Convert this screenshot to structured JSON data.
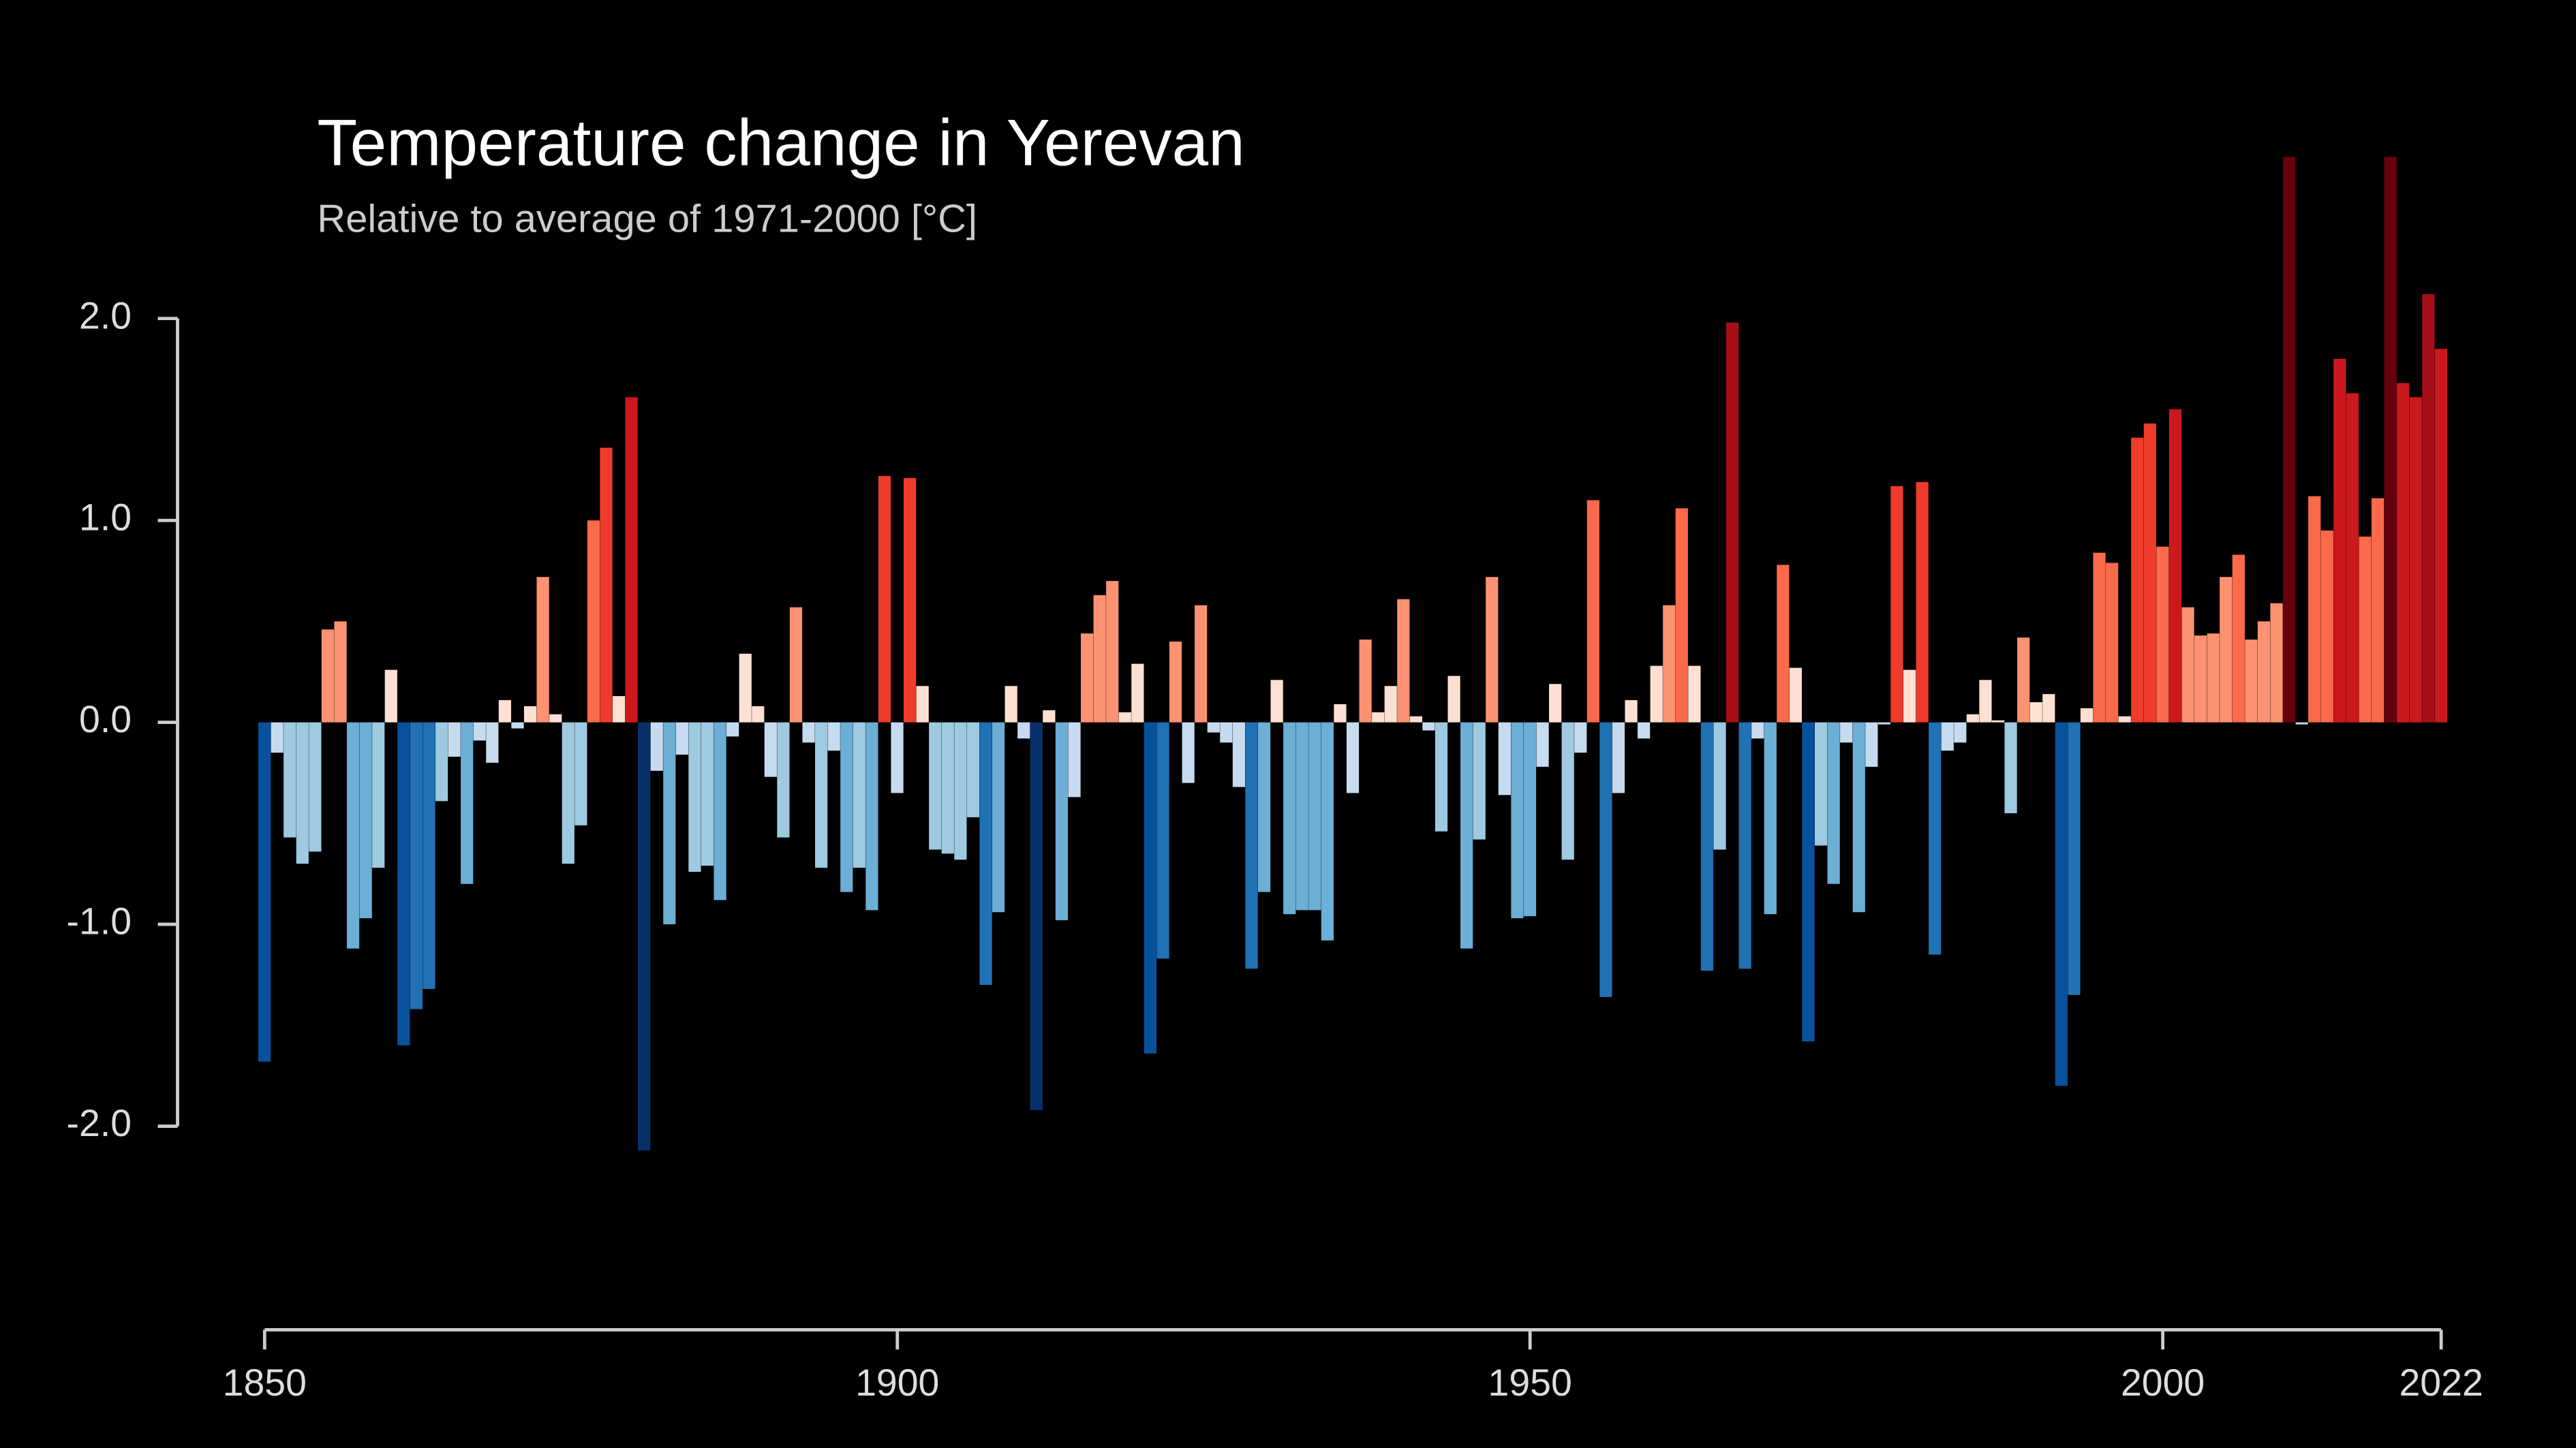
{
  "chart_data": {
    "type": "bar",
    "title": "Temperature change in Yerevan",
    "subtitle": "Relative to average of 1971-2000  [°C]",
    "x": [
      1850,
      1851,
      1852,
      1853,
      1854,
      1855,
      1856,
      1857,
      1858,
      1859,
      1860,
      1861,
      1862,
      1863,
      1864,
      1865,
      1866,
      1867,
      1868,
      1869,
      1870,
      1871,
      1872,
      1873,
      1874,
      1875,
      1876,
      1877,
      1878,
      1879,
      1880,
      1881,
      1882,
      1883,
      1884,
      1885,
      1886,
      1887,
      1888,
      1889,
      1890,
      1891,
      1892,
      1893,
      1894,
      1895,
      1896,
      1897,
      1898,
      1899,
      1900,
      1901,
      1902,
      1903,
      1904,
      1905,
      1906,
      1907,
      1908,
      1909,
      1910,
      1911,
      1912,
      1913,
      1914,
      1915,
      1916,
      1917,
      1918,
      1919,
      1920,
      1921,
      1922,
      1923,
      1924,
      1925,
      1926,
      1927,
      1928,
      1929,
      1930,
      1931,
      1932,
      1933,
      1934,
      1935,
      1936,
      1937,
      1938,
      1939,
      1940,
      1941,
      1942,
      1943,
      1944,
      1945,
      1946,
      1947,
      1948,
      1949,
      1950,
      1951,
      1952,
      1953,
      1954,
      1955,
      1956,
      1957,
      1958,
      1959,
      1960,
      1961,
      1962,
      1963,
      1964,
      1965,
      1966,
      1967,
      1968,
      1969,
      1970,
      1971,
      1972,
      1973,
      1974,
      1975,
      1976,
      1977,
      1978,
      1979,
      1980,
      1981,
      1982,
      1983,
      1984,
      1985,
      1986,
      1987,
      1988,
      1989,
      1990,
      1991,
      1992,
      1993,
      1994,
      1995,
      1996,
      1997,
      1998,
      1999,
      2000,
      2001,
      2002,
      2003,
      2004,
      2005,
      2006,
      2007,
      2008,
      2009,
      2010,
      2011,
      2012,
      2013,
      2014,
      2015,
      2016,
      2017,
      2018,
      2019,
      2020,
      2021,
      2022
    ],
    "values": [
      -1.68,
      -0.15,
      -0.57,
      -0.7,
      -0.64,
      0.46,
      0.5,
      -1.12,
      -0.97,
      -0.72,
      0.26,
      -1.6,
      -1.42,
      -1.32,
      -0.39,
      -0.17,
      -0.8,
      -0.09,
      -0.2,
      0.11,
      -0.03,
      0.08,
      0.72,
      0.04,
      -0.7,
      -0.51,
      1.0,
      1.36,
      0.13,
      1.61,
      -2.12,
      -0.24,
      -1.0,
      -0.16,
      -0.74,
      -0.71,
      -0.88,
      -0.07,
      0.34,
      0.08,
      -0.27,
      -0.57,
      0.57,
      -0.1,
      -0.72,
      -0.14,
      -0.84,
      -0.72,
      -0.93,
      1.22,
      -0.35,
      1.21,
      0.18,
      -0.63,
      -0.65,
      -0.68,
      -0.47,
      -1.3,
      -0.94,
      0.18,
      -0.08,
      -1.92,
      0.06,
      -0.98,
      -0.37,
      0.44,
      0.63,
      0.7,
      0.05,
      0.29,
      -1.64,
      -1.17,
      0.4,
      -0.3,
      0.58,
      -0.05,
      -0.1,
      -0.32,
      -1.22,
      -0.84,
      0.21,
      -0.95,
      -0.93,
      -0.93,
      -1.08,
      0.09,
      -0.35,
      0.41,
      0.05,
      0.18,
      0.61,
      0.03,
      -0.04,
      -0.54,
      0.23,
      -1.12,
      -0.58,
      0.72,
      -0.36,
      -0.97,
      -0.96,
      -0.22,
      0.19,
      -0.68,
      -0.15,
      1.1,
      -1.36,
      -0.35,
      0.11,
      -0.08,
      0.28,
      0.58,
      1.06,
      0.28,
      -1.23,
      -0.63,
      1.98,
      -1.22,
      -0.08,
      -0.95,
      0.78,
      0.27,
      -1.58,
      -0.61,
      -0.8,
      -0.1,
      -0.94,
      -0.22,
      -0.01,
      1.17,
      0.26,
      1.19,
      -1.15,
      -0.14,
      -0.1,
      0.04,
      0.21,
      0.01,
      -0.45,
      0.42,
      0.1,
      0.14,
      -1.8,
      -1.35,
      0.07,
      0.84,
      0.79,
      0.03,
      1.41,
      1.48,
      0.87,
      1.55,
      0.57,
      0.43,
      0.44,
      0.72,
      0.83,
      0.41,
      0.5,
      0.59,
      2.8,
      -0.01,
      1.12,
      0.95,
      1.8,
      1.63,
      0.92,
      1.11,
      2.8,
      1.68,
      1.61,
      2.12,
      1.85
    ],
    "colors": [
      "#08306b",
      "#08306b",
      "#08306b",
      "#08519c",
      "#2171b5",
      "#6baed6",
      "#9ecae1",
      "#c6dbef",
      "#fee0d2",
      "#fc9272",
      "#fb6a4a",
      "#ef3b2c",
      "#cb181d",
      "#a50f15",
      "#67000d",
      "#67000d"
    ],
    "xlim": [
      1850,
      2022
    ],
    "xticks": [
      1850,
      1900,
      1950,
      2000,
      2022
    ],
    "ylim": [
      -3,
      3
    ],
    "yticks": [
      {
        "value": 2,
        "label": "2.0"
      },
      {
        "value": 1,
        "label": "1.0"
      },
      {
        "value": 0,
        "label": "0.0"
      },
      {
        "value": -1,
        "label": "-1.0"
      },
      {
        "value": -2,
        "label": "-2.0"
      }
    ]
  }
}
